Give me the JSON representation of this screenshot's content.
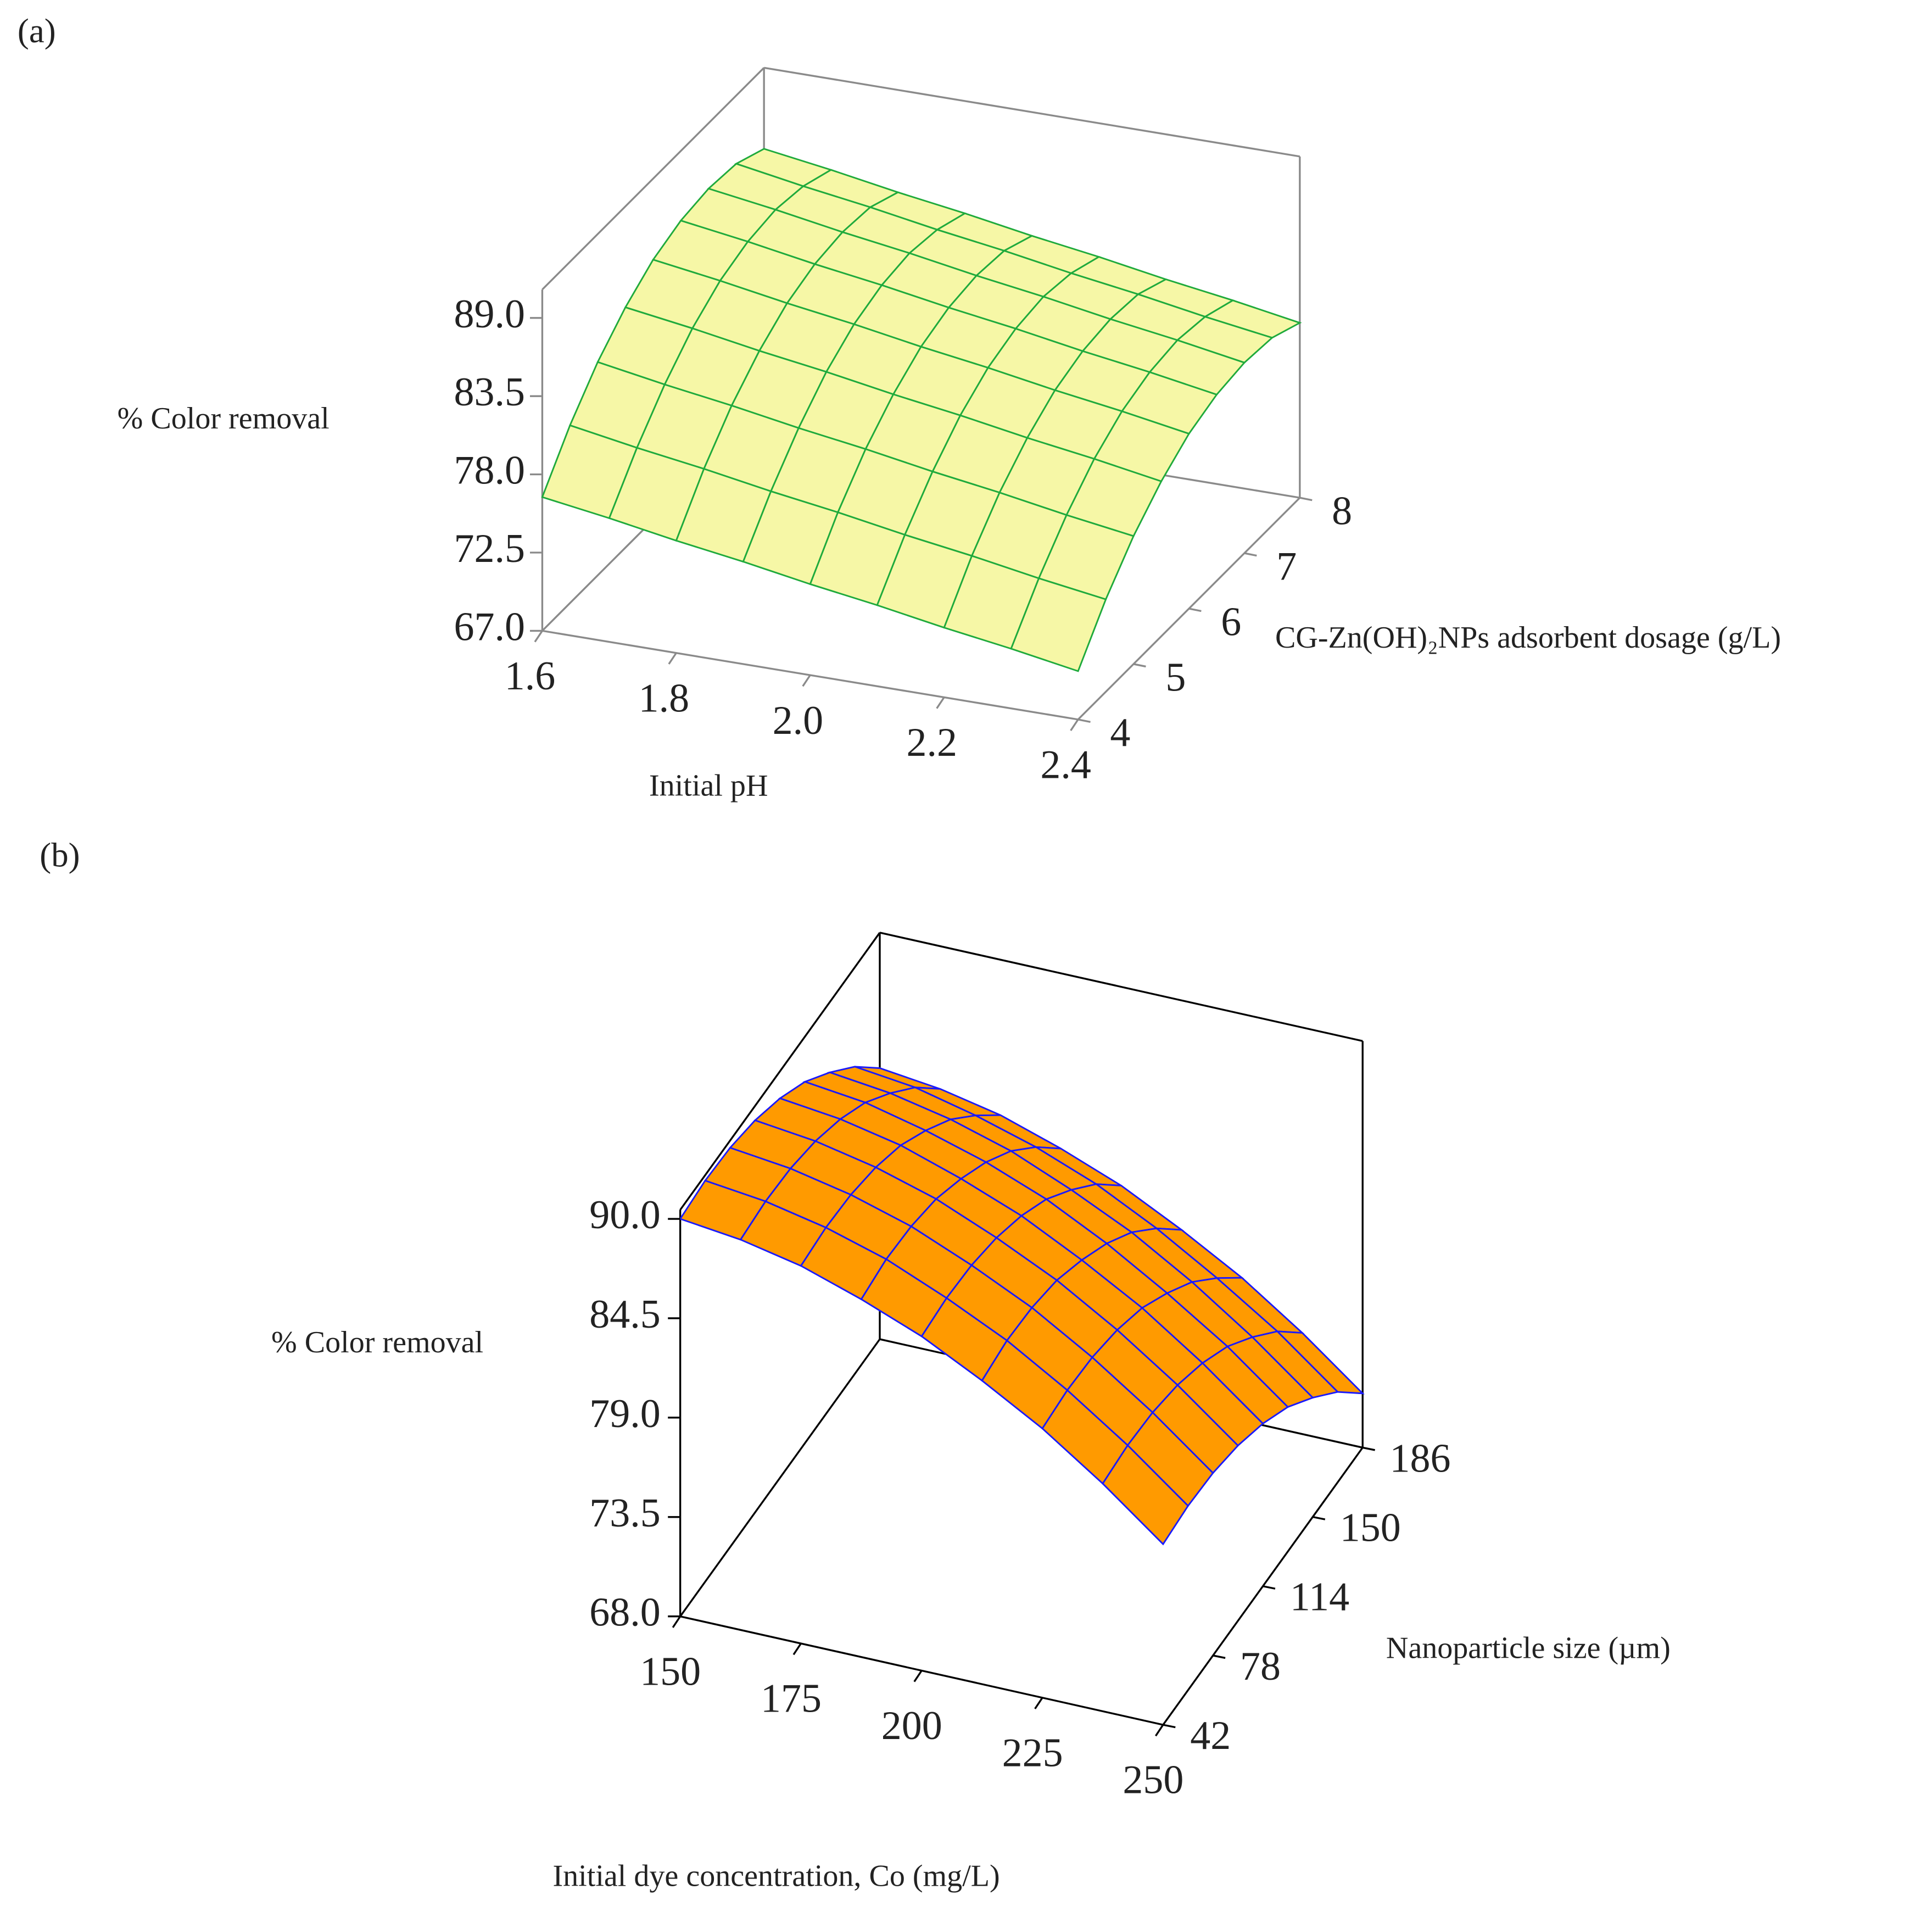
{
  "chart_data": [
    {
      "type": "surface",
      "panel_label": "(a)",
      "xlabel": "Initial pH",
      "ylabel": "CG-Zn(OH)₂NPs adsorbent dosage (g/L)",
      "zlabel": "% Color removal",
      "color": "#f6f7a6",
      "edge_color": "#1faa3c",
      "x": [
        1.6,
        1.7,
        1.8,
        1.9,
        2.0,
        2.1,
        2.2,
        2.3,
        2.4
      ],
      "y": [
        4,
        4.5,
        5,
        5.5,
        6,
        6.5,
        7,
        7.5,
        8
      ],
      "z": [
        [
          76.4,
          75.7,
          74.9,
          74.2,
          73.4,
          72.7,
          71.9,
          71.2,
          70.4
        ],
        [
          79.5,
          78.7,
          78.0,
          77.2,
          76.5,
          75.7,
          75.0,
          74.2,
          73.5
        ],
        [
          82.0,
          81.2,
          80.5,
          79.7,
          79.0,
          78.2,
          77.5,
          76.7,
          76.0
        ],
        [
          83.9,
          83.2,
          82.4,
          81.7,
          80.9,
          80.2,
          79.4,
          78.7,
          77.9
        ],
        [
          85.3,
          84.6,
          83.8,
          83.1,
          82.3,
          81.6,
          80.8,
          80.1,
          79.3
        ],
        [
          86.1,
          85.4,
          84.6,
          83.9,
          83.1,
          82.4,
          81.6,
          80.9,
          80.1
        ],
        [
          86.4,
          85.7,
          84.9,
          84.2,
          83.4,
          82.7,
          81.9,
          81.2,
          80.4
        ],
        [
          86.2,
          85.4,
          84.7,
          83.9,
          83.2,
          82.4,
          81.7,
          80.9,
          80.2
        ],
        [
          85.3,
          84.6,
          83.8,
          83.1,
          82.3,
          81.6,
          80.8,
          80.1,
          79.3
        ]
      ],
      "xlim": [
        1.6,
        2.4
      ],
      "ylim": [
        4,
        8
      ],
      "zlim": [
        67,
        91
      ],
      "xticks": [
        1.6,
        1.8,
        {
          "value": 2,
          "label": "2.0"
        },
        2.2,
        2.4
      ],
      "yticks": [
        4,
        5,
        6,
        7,
        8
      ],
      "zticks": [
        {
          "value": 67,
          "label": "67.0"
        },
        72.5,
        {
          "value": 78,
          "label": "78.0"
        },
        83.5,
        {
          "value": 89,
          "label": "89.0"
        }
      ]
    },
    {
      "type": "surface",
      "panel_label": "(b)",
      "xlabel": "Initial dye concentration, Co (mg/L)",
      "ylabel": "Nanoparticle size (µm)",
      "zlabel": "% Color removal",
      "color": "#ff9a00",
      "edge_color": "#1a1aff",
      "x": [
        150,
        162.5,
        175,
        187.5,
        200,
        212.5,
        225,
        237.5,
        250
      ],
      "y": [
        42,
        60,
        78,
        96,
        114,
        132,
        150,
        168,
        186
      ],
      "z": [
        [
          90.0,
          89.6,
          88.9,
          87.8,
          86.5,
          84.8,
          82.9,
          80.6,
          78.0
        ],
        [
          90.2,
          89.8,
          89.1,
          88.1,
          86.7,
          85.1,
          83.1,
          80.8,
          78.2
        ],
        [
          90.1,
          89.7,
          89.0,
          88.0,
          86.6,
          85.0,
          83.0,
          80.7,
          78.1
        ],
        [
          89.7,
          89.3,
          88.6,
          87.6,
          86.2,
          84.6,
          82.6,
          80.3,
          77.7
        ],
        [
          89.0,
          88.6,
          87.9,
          86.8,
          85.5,
          83.8,
          81.9,
          79.6,
          77.0
        ],
        [
          88.0,
          87.6,
          86.8,
          85.8,
          84.5,
          82.8,
          80.8,
          78.6,
          76.0
        ],
        [
          86.6,
          86.2,
          85.5,
          84.5,
          83.1,
          81.5,
          79.5,
          77.2,
          74.6
        ],
        [
          85.0,
          84.6,
          83.8,
          82.8,
          81.5,
          79.8,
          77.8,
          75.6,
          73.0
        ],
        [
          83.0,
          82.6,
          81.9,
          80.8,
          79.5,
          77.8,
          75.9,
          73.6,
          71.0
        ]
      ],
      "xlim": [
        150,
        250
      ],
      "ylim": [
        42,
        186
      ],
      "zlim": [
        68,
        90.5
      ],
      "xticks": [
        150,
        175,
        200,
        225,
        250
      ],
      "yticks": [
        42,
        78,
        114,
        150,
        186
      ],
      "zticks": [
        {
          "value": 68,
          "label": "68.0"
        },
        73.5,
        {
          "value": 79,
          "label": "79.0"
        },
        84.5,
        {
          "value": 90,
          "label": "90.0"
        }
      ]
    }
  ]
}
